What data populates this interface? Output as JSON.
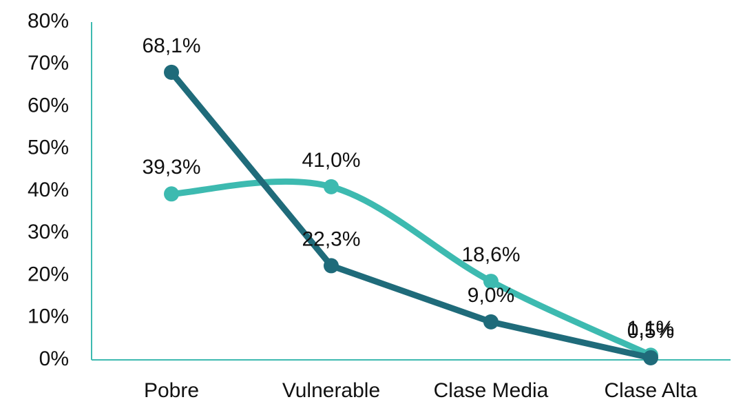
{
  "chart_data": {
    "type": "line",
    "categories": [
      "Pobre",
      "Vulnerable",
      "Clase Media",
      "Clase Alta"
    ],
    "series": [
      {
        "color": "#3dbab0",
        "smooth": true,
        "values": [
          39.3,
          41.0,
          18.6,
          1.1
        ],
        "value_labels": [
          "39,3%",
          "41,0%",
          "18,6%",
          "1,1%"
        ]
      },
      {
        "color": "#1f6b7a",
        "smooth": false,
        "values": [
          68.1,
          22.3,
          9.0,
          0.5
        ],
        "value_labels": [
          "68,1%",
          "22,3%",
          "9,0%",
          "0,5%"
        ]
      }
    ],
    "ylim": [
      0,
      80
    ],
    "yticks": [
      {
        "value": 0,
        "label": "0%"
      },
      {
        "value": 10,
        "label": "10%"
      },
      {
        "value": 20,
        "label": "20%"
      },
      {
        "value": 30,
        "label": "30%"
      },
      {
        "value": 40,
        "label": "40%"
      },
      {
        "value": 50,
        "label": "50%"
      },
      {
        "value": 60,
        "label": "60%"
      },
      {
        "value": 70,
        "label": "70%"
      },
      {
        "value": 80,
        "label": "80%"
      }
    ],
    "axis_color": "#3dbab0",
    "grid": false
  }
}
